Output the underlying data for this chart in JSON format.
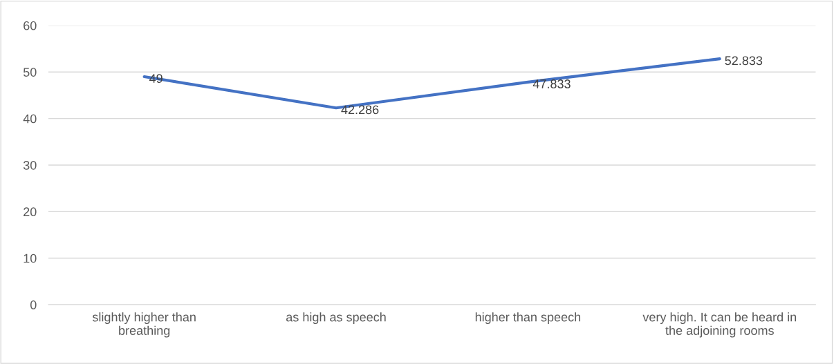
{
  "chart_data": {
    "type": "line",
    "categories": [
      "slightly higher than breathing",
      "as high as speech",
      "higher than speech",
      "very high. It can be heard in the adjoining rooms"
    ],
    "series": [
      {
        "color": "#4472c4",
        "values": [
          49,
          42.286,
          47.833,
          52.833
        ]
      }
    ],
    "ylim": [
      0,
      60
    ],
    "yticks": [
      0,
      10,
      20,
      30,
      40,
      50,
      60
    ],
    "grid": "y",
    "data_labels": true,
    "marker": "none",
    "line_style": "solid",
    "legend": false
  }
}
